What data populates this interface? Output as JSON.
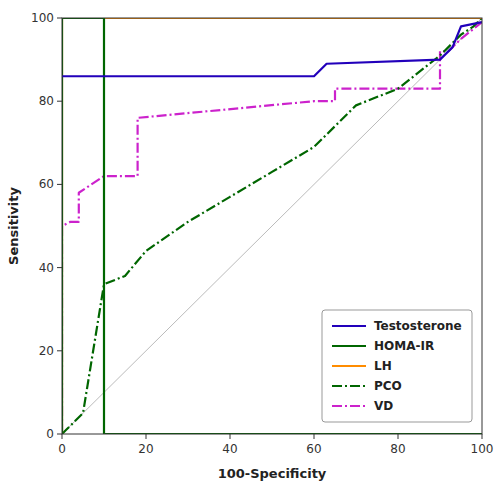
{
  "chart_data": {
    "type": "line",
    "xlabel": "100-Specificity",
    "ylabel": "Sensitivity",
    "xlim": [
      0,
      100
    ],
    "ylim": [
      0,
      100
    ],
    "xticks": [
      0,
      20,
      40,
      60,
      80,
      100
    ],
    "yticks": [
      0,
      20,
      40,
      60,
      80,
      100
    ],
    "grid": false,
    "legend": "lower-right",
    "reference_line": {
      "x": [
        0,
        100
      ],
      "y": [
        0,
        100
      ],
      "color": "#bbbbbb"
    },
    "series": [
      {
        "name": "Testosterone",
        "color": "#2200bb",
        "line_style": "solid",
        "x": [
          0,
          0,
          60,
          63,
          90,
          93,
          95,
          100
        ],
        "values": [
          86,
          86,
          86,
          89,
          90,
          93,
          98,
          99
        ]
      },
      {
        "name": "HOMA-IR",
        "color": "#006600",
        "line_style": "solid",
        "x": [
          0,
          0,
          10,
          10,
          100
        ],
        "values": [
          0,
          100,
          100,
          0,
          0
        ]
      },
      {
        "name": "LH",
        "color": "#ff8c00",
        "line_style": "solid",
        "x": [
          0,
          0,
          100,
          100
        ],
        "values": [
          0,
          100,
          100,
          100
        ]
      },
      {
        "name": "PCO",
        "color": "#006600",
        "line_style": "dashdot",
        "x": [
          0,
          1,
          3,
          5,
          10,
          15,
          20,
          30,
          40,
          50,
          60,
          65,
          70,
          80,
          90,
          92,
          95,
          98,
          100
        ],
        "values": [
          0,
          1,
          3,
          5,
          36,
          38,
          44,
          51,
          57,
          63,
          69,
          74,
          79,
          83,
          91,
          93,
          96,
          98,
          100
        ]
      },
      {
        "name": "VD",
        "color": "#cc22cc",
        "line_style": "dashdot",
        "x": [
          0,
          0,
          2,
          4,
          4,
          10,
          13,
          18,
          18,
          60,
          65,
          65,
          85,
          90,
          90,
          92,
          95,
          100
        ],
        "values": [
          0,
          50,
          51,
          51,
          58,
          62,
          62,
          62,
          76,
          80,
          80,
          83,
          83,
          83,
          92,
          92,
          95,
          99
        ]
      }
    ]
  }
}
